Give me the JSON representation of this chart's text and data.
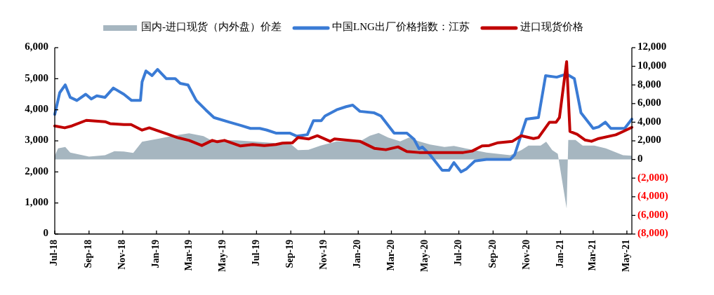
{
  "chart_data": {
    "type": "line",
    "legend": "top",
    "xlim": [
      "2018-07-01",
      "2021-05-10"
    ],
    "xticks": [
      {
        "value": "2018-07-01",
        "label": "Jul-18"
      },
      {
        "value": "2018-09-01",
        "label": "Sep-18"
      },
      {
        "value": "2018-11-01",
        "label": "Nov-18"
      },
      {
        "value": "2019-01-01",
        "label": "Jan-19"
      },
      {
        "value": "2019-03-01",
        "label": "Mar-19"
      },
      {
        "value": "2019-05-01",
        "label": "May-19"
      },
      {
        "value": "2019-07-01",
        "label": "Jul-19"
      },
      {
        "value": "2019-09-01",
        "label": "Sep-19"
      },
      {
        "value": "2019-11-01",
        "label": "Nov-19"
      },
      {
        "value": "2020-01-01",
        "label": "Jan-20"
      },
      {
        "value": "2020-03-01",
        "label": "Mar-20"
      },
      {
        "value": "2020-05-01",
        "label": "May-20"
      },
      {
        "value": "2020-07-01",
        "label": "Jul-20"
      },
      {
        "value": "2020-09-01",
        "label": "Sep-20"
      },
      {
        "value": "2020-11-01",
        "label": "Nov-20"
      },
      {
        "value": "2021-01-01",
        "label": "Jan-21"
      },
      {
        "value": "2021-03-01",
        "label": "Mar-21"
      },
      {
        "value": "2021-05-01",
        "label": "May-21"
      }
    ],
    "ylim": [
      0,
      6000
    ],
    "yticks": [
      0,
      {
        "value": 1000,
        "label": "1,000"
      },
      {
        "value": 2000,
        "label": "2,000"
      },
      {
        "value": 3000,
        "label": "3,000"
      },
      {
        "value": 4000,
        "label": "4,000"
      },
      {
        "value": 5000,
        "label": "5,000"
      },
      {
        "value": 6000,
        "label": "6,000"
      }
    ],
    "y2lim": [
      -8000,
      12000
    ],
    "y2ticks": [
      {
        "value": -8000,
        "label": "(8,000)"
      },
      {
        "value": -6000,
        "label": "(6,000)"
      },
      {
        "value": -4000,
        "label": "(4,000)"
      },
      {
        "value": -2000,
        "label": "(2,000)"
      },
      0,
      {
        "value": 2000,
        "label": "2,000"
      },
      {
        "value": 4000,
        "label": "4,000"
      },
      {
        "value": 6000,
        "label": "6,000"
      },
      {
        "value": 8000,
        "label": "8,000"
      },
      {
        "value": 10000,
        "label": "10,000"
      },
      {
        "value": 12000,
        "label": "12,000"
      }
    ],
    "series": [
      {
        "name": "国内-进口现货（内外盘）价差",
        "type": "area",
        "axis": "y2",
        "color": "#a6b6c0",
        "x": [
          "2018-07-01",
          "2018-07-07",
          "2018-07-20",
          "2018-07-29",
          "2018-09-01",
          "2018-09-30",
          "2018-10-17",
          "2018-11-03",
          "2018-11-20",
          "2018-12-06",
          "2019-01-06",
          "2019-01-31",
          "2019-03-01",
          "2019-03-27",
          "2019-04-09",
          "2019-05-26",
          "2019-08-05",
          "2019-08-30",
          "2019-09-14",
          "2019-10-03",
          "2019-10-25",
          "2019-11-23",
          "2020-01-04",
          "2020-01-22",
          "2020-02-07",
          "2020-02-24",
          "2020-03-17",
          "2020-04-02",
          "2020-04-20",
          "2020-05-10",
          "2020-06-05",
          "2020-06-22",
          "2020-07-13",
          "2020-08-20",
          "2020-10-02",
          "2020-10-22",
          "2020-11-04",
          "2020-11-26",
          "2020-12-06",
          "2020-12-17",
          "2020-12-27",
          "2021-01-12",
          "2021-01-15",
          "2021-01-28",
          "2021-02-10",
          "2021-03-03",
          "2021-03-24",
          "2021-04-24",
          "2021-05-10"
        ],
        "values": [
          400,
          1200,
          1350,
          750,
          300,
          450,
          900,
          850,
          700,
          1900,
          2250,
          2550,
          2800,
          2500,
          2100,
          2050,
          1750,
          1750,
          1000,
          1050,
          1500,
          1950,
          1950,
          2550,
          2850,
          2350,
          1950,
          2350,
          1950,
          1600,
          1350,
          1450,
          1200,
          750,
          450,
          1000,
          1500,
          1500,
          1900,
          1000,
          600,
          -5250,
          2100,
          2100,
          1500,
          1500,
          1200,
          450,
          400
        ]
      },
      {
        "name": "中国LNG出厂价格指数：江苏",
        "color": "#3a7bd5",
        "x": [
          "2018-07-01",
          "2018-07-10",
          "2018-07-20",
          "2018-07-29",
          "2018-08-10",
          "2018-08-26",
          "2018-09-05",
          "2018-09-15",
          "2018-09-30",
          "2018-10-15",
          "2018-11-03",
          "2018-11-17",
          "2018-12-03",
          "2018-12-06",
          "2018-12-13",
          "2018-12-24",
          "2019-01-03",
          "2019-01-19",
          "2019-02-04",
          "2019-02-13",
          "2019-02-27",
          "2019-03-14",
          "2019-03-31",
          "2019-04-15",
          "2019-05-13",
          "2019-06-02",
          "2019-06-20",
          "2019-07-07",
          "2019-07-19",
          "2019-08-05",
          "2019-08-30",
          "2019-09-12",
          "2019-10-01",
          "2019-10-12",
          "2019-10-26",
          "2019-11-02",
          "2019-11-23",
          "2019-12-10",
          "2019-12-22",
          "2020-01-04",
          "2020-01-30",
          "2020-02-11",
          "2020-03-06",
          "2020-03-29",
          "2020-04-11",
          "2020-04-20",
          "2020-04-26",
          "2020-05-10",
          "2020-06-01",
          "2020-06-13",
          "2020-06-22",
          "2020-07-05",
          "2020-07-15",
          "2020-07-30",
          "2020-08-20",
          "2020-10-02",
          "2020-10-10",
          "2020-10-31",
          "2020-11-22",
          "2020-12-05",
          "2020-12-25",
          "2021-01-12",
          "2021-01-26",
          "2021-02-07",
          "2021-03-01",
          "2021-03-11",
          "2021-03-23",
          "2021-04-02",
          "2021-04-27",
          "2021-05-10"
        ],
        "values": [
          3850,
          4550,
          4800,
          4400,
          4300,
          4500,
          4350,
          4450,
          4400,
          4700,
          4500,
          4300,
          4300,
          4900,
          5250,
          5100,
          5300,
          5000,
          5000,
          4850,
          4800,
          4300,
          4000,
          3750,
          3600,
          3500,
          3400,
          3400,
          3350,
          3250,
          3250,
          3150,
          3200,
          3650,
          3650,
          3800,
          4000,
          4100,
          4150,
          3950,
          3900,
          3800,
          3250,
          3250,
          3050,
          2750,
          2800,
          2550,
          2050,
          2050,
          2300,
          2000,
          2100,
          2350,
          2400,
          2400,
          2550,
          3700,
          3750,
          5100,
          5050,
          5150,
          5000,
          3900,
          3400,
          3450,
          3600,
          3400,
          3400,
          3700
        ]
      },
      {
        "name": "进口现货价格",
        "axis": "y2",
        "color": "#c00000",
        "x": [
          "2018-07-01",
          "2018-07-19",
          "2018-08-01",
          "2018-08-27",
          "2018-09-30",
          "2018-10-09",
          "2018-11-03",
          "2018-11-16",
          "2018-12-06",
          "2018-12-19",
          "2019-01-22",
          "2019-02-08",
          "2019-03-01",
          "2019-03-24",
          "2019-04-12",
          "2019-04-21",
          "2019-05-04",
          "2019-06-02",
          "2019-06-24",
          "2019-07-15",
          "2019-08-05",
          "2019-08-17",
          "2019-09-04",
          "2019-09-14",
          "2019-10-03",
          "2019-10-19",
          "2019-11-11",
          "2019-11-19",
          "2020-01-04",
          "2020-01-30",
          "2020-02-20",
          "2020-03-13",
          "2020-03-29",
          "2020-04-20",
          "2020-06-01",
          "2020-07-09",
          "2020-07-25",
          "2020-08-12",
          "2020-08-25",
          "2020-09-10",
          "2020-10-06",
          "2020-10-22",
          "2020-11-13",
          "2020-11-22",
          "2020-12-12",
          "2020-12-24",
          "2020-12-30",
          "2021-01-12",
          "2021-01-18",
          "2021-01-31",
          "2021-02-14",
          "2021-02-26",
          "2021-03-11",
          "2021-04-11",
          "2021-04-24",
          "2021-05-10"
        ],
        "values": [
          3600,
          3400,
          3600,
          4200,
          4050,
          3850,
          3750,
          3750,
          3150,
          3400,
          2700,
          2350,
          2050,
          1500,
          2050,
          1900,
          2050,
          1450,
          1600,
          1500,
          1600,
          1750,
          1800,
          2350,
          2200,
          2550,
          1950,
          2200,
          1950,
          1200,
          1050,
          1350,
          850,
          750,
          750,
          750,
          900,
          1450,
          1500,
          1800,
          1950,
          2550,
          2250,
          2350,
          4000,
          4000,
          4500,
          10500,
          3000,
          2700,
          2100,
          1950,
          2250,
          2650,
          3000,
          3450
        ]
      }
    ]
  }
}
